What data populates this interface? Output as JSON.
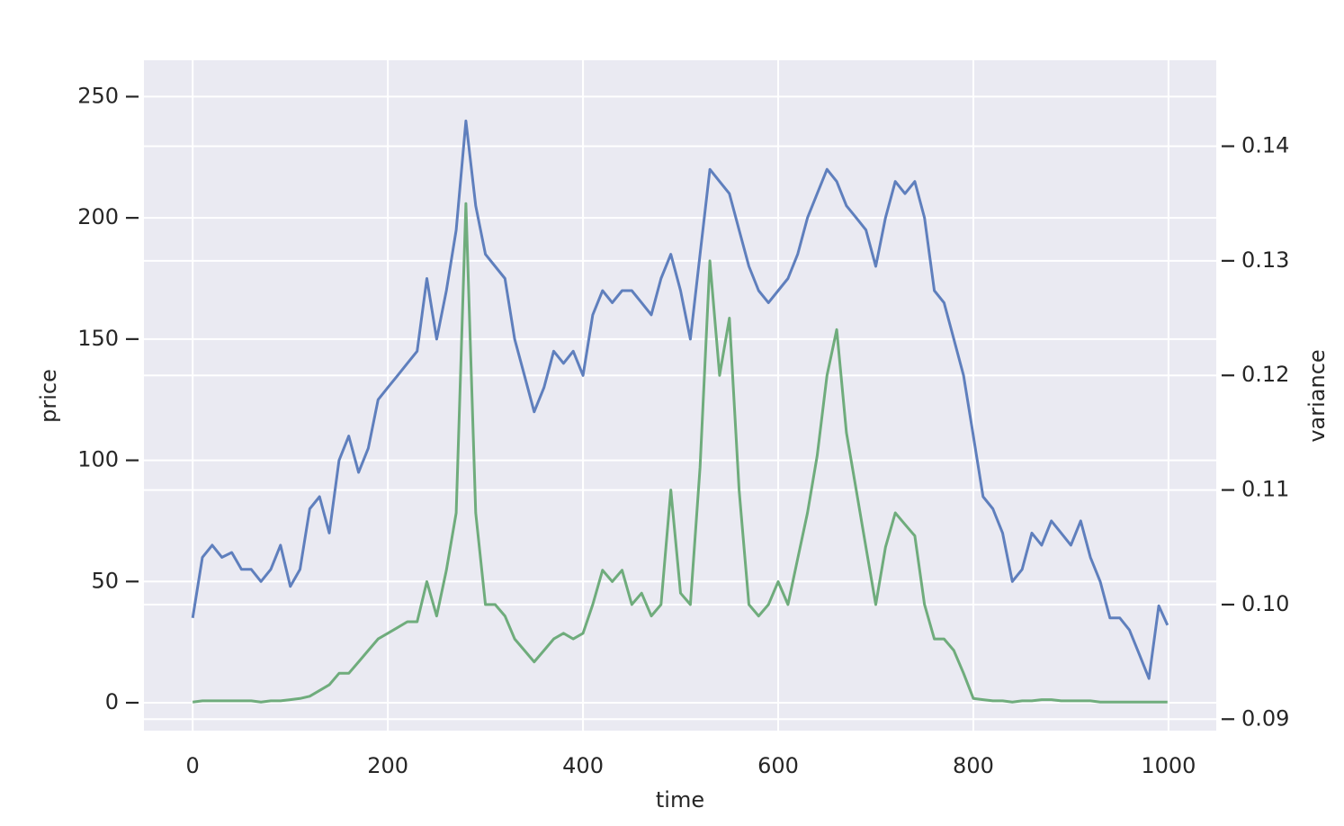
{
  "chart_data": {
    "type": "line",
    "x_label": "time",
    "y_label": "price",
    "y2_label": "variance",
    "xlim": [
      -49.95,
      1048.95
    ],
    "ylim": [
      -11.5,
      265
    ],
    "y2lim": [
      0.089,
      0.1475
    ],
    "xticks": [
      0,
      200,
      400,
      600,
      800,
      1000
    ],
    "yticks": [
      0,
      50,
      100,
      150,
      200,
      250
    ],
    "y2ticks": [
      0.09,
      {
        "value": 0.1,
        "label": "0.10"
      },
      0.11,
      0.12,
      0.13,
      0.14
    ],
    "grid": true,
    "x": [
      0,
      10,
      20,
      30,
      40,
      50,
      60,
      70,
      80,
      90,
      100,
      110,
      120,
      130,
      140,
      150,
      160,
      170,
      180,
      190,
      200,
      210,
      220,
      230,
      240,
      250,
      260,
      270,
      280,
      290,
      300,
      310,
      320,
      330,
      340,
      350,
      360,
      370,
      380,
      390,
      400,
      410,
      420,
      430,
      440,
      450,
      460,
      470,
      480,
      490,
      500,
      510,
      520,
      530,
      540,
      550,
      560,
      570,
      580,
      590,
      600,
      610,
      620,
      630,
      640,
      650,
      660,
      670,
      680,
      690,
      700,
      710,
      720,
      730,
      740,
      750,
      760,
      770,
      780,
      790,
      800,
      810,
      820,
      830,
      840,
      850,
      860,
      870,
      880,
      890,
      900,
      910,
      920,
      930,
      940,
      950,
      960,
      970,
      980,
      990,
      999
    ],
    "series": [
      {
        "name": "price",
        "color": "#5f7fbd",
        "axis": "y",
        "values": [
          35,
          60,
          65,
          60,
          62,
          55,
          55,
          50,
          55,
          65,
          48,
          55,
          80,
          85,
          70,
          100,
          110,
          95,
          105,
          125,
          130,
          135,
          140,
          145,
          175,
          150,
          170,
          195,
          240,
          205,
          185,
          180,
          175,
          150,
          135,
          120,
          130,
          145,
          140,
          145,
          135,
          160,
          170,
          165,
          170,
          170,
          165,
          160,
          175,
          185,
          170,
          150,
          185,
          220,
          215,
          210,
          195,
          180,
          170,
          165,
          170,
          175,
          185,
          200,
          210,
          220,
          215,
          205,
          200,
          195,
          180,
          200,
          215,
          210,
          215,
          200,
          170,
          165,
          150,
          135,
          110,
          85,
          80,
          70,
          50,
          55,
          70,
          65,
          75,
          70,
          65,
          75,
          60,
          50,
          35,
          35,
          30,
          20,
          10,
          40,
          32
        ]
      },
      {
        "name": "variance",
        "color": "#6fac7c",
        "axis": "y2",
        "values": [
          0.0915,
          0.0916,
          0.0916,
          0.0916,
          0.0916,
          0.0916,
          0.0916,
          0.0915,
          0.0916,
          0.0916,
          0.0917,
          0.0918,
          0.092,
          0.0925,
          0.093,
          0.094,
          0.094,
          0.095,
          0.096,
          0.097,
          0.0975,
          0.098,
          0.0985,
          0.0985,
          0.102,
          0.099,
          0.103,
          0.108,
          0.135,
          0.108,
          0.1,
          0.1,
          0.099,
          0.097,
          0.096,
          0.095,
          0.096,
          0.097,
          0.0975,
          0.097,
          0.0975,
          0.1,
          0.103,
          0.102,
          0.103,
          0.1,
          0.101,
          0.099,
          0.1,
          0.11,
          0.101,
          0.1,
          0.112,
          0.13,
          0.12,
          0.125,
          0.11,
          0.1,
          0.099,
          0.1,
          0.102,
          0.1,
          0.104,
          0.108,
          0.113,
          0.12,
          0.124,
          0.115,
          0.11,
          0.105,
          0.1,
          0.105,
          0.108,
          0.107,
          0.106,
          0.1,
          0.097,
          0.097,
          0.096,
          0.094,
          0.0918,
          0.0917,
          0.0916,
          0.0916,
          0.0915,
          0.0916,
          0.0916,
          0.0917,
          0.0917,
          0.0916,
          0.0916,
          0.0916,
          0.0916,
          0.0915,
          0.0915,
          0.0915,
          0.0915,
          0.0915,
          0.0915,
          0.0915,
          0.0915
        ]
      }
    ]
  }
}
